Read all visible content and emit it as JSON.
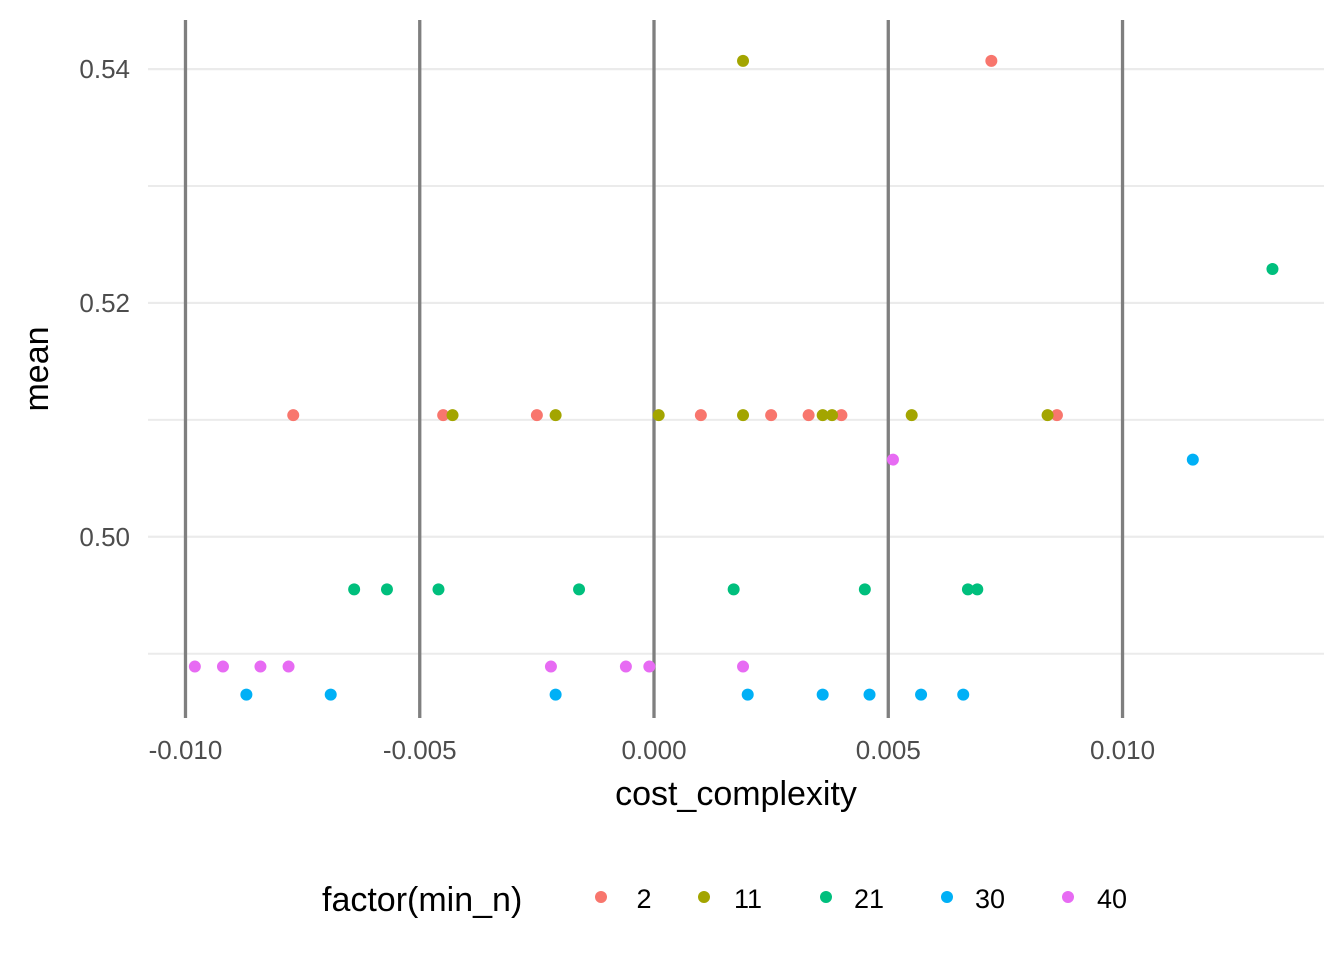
{
  "chart_data": {
    "type": "scatter",
    "title": "",
    "xlabel": "cost_complexity",
    "ylabel": "mean",
    "xlim": [
      -0.0108,
      0.0143
    ],
    "ylim": [
      0.4845,
      0.5442
    ],
    "x_ticks": [
      {
        "value": -0.01,
        "label": "-0.010"
      },
      {
        "value": -0.005,
        "label": "-0.005"
      },
      {
        "value": 0.0,
        "label": "0.000"
      },
      {
        "value": 0.005,
        "label": "0.005"
      },
      {
        "value": 0.01,
        "label": "0.010"
      }
    ],
    "y_ticks": [
      {
        "value": 0.54,
        "label": "0.54"
      },
      {
        "value": 0.52,
        "label": "0.52"
      },
      {
        "value": 0.5,
        "label": "0.50"
      }
    ],
    "y_minor_gridlines": [
      0.53,
      0.51,
      0.49
    ],
    "vertical_reference_lines": [
      -0.01,
      -0.005,
      0.0,
      0.005,
      0.01
    ],
    "grid": true,
    "legend": {
      "title": "factor(min_n)",
      "placement": "bottom"
    },
    "series": [
      {
        "name": "2",
        "color": "#F8766D",
        "points": [
          {
            "x": -0.0077,
            "y": 0.5104
          },
          {
            "x": -0.0045,
            "y": 0.5104
          },
          {
            "x": -0.0025,
            "y": 0.5104
          },
          {
            "x": 0.001,
            "y": 0.5104
          },
          {
            "x": 0.0025,
            "y": 0.5104
          },
          {
            "x": 0.0033,
            "y": 0.5104
          },
          {
            "x": 0.004,
            "y": 0.5104
          },
          {
            "x": 0.0086,
            "y": 0.5104
          },
          {
            "x": 0.0072,
            "y": 0.5407
          }
        ]
      },
      {
        "name": "11",
        "color": "#A3A500",
        "points": [
          {
            "x": 0.0019,
            "y": 0.5407
          },
          {
            "x": -0.0043,
            "y": 0.5104
          },
          {
            "x": -0.0021,
            "y": 0.5104
          },
          {
            "x": 0.0001,
            "y": 0.5104
          },
          {
            "x": 0.0019,
            "y": 0.5104
          },
          {
            "x": 0.0036,
            "y": 0.5104
          },
          {
            "x": 0.0038,
            "y": 0.5104
          },
          {
            "x": 0.0055,
            "y": 0.5104
          },
          {
            "x": 0.0084,
            "y": 0.5104
          }
        ]
      },
      {
        "name": "21",
        "color": "#00BF7D",
        "points": [
          {
            "x": 0.0132,
            "y": 0.5229
          },
          {
            "x": -0.0064,
            "y": 0.4955
          },
          {
            "x": -0.0057,
            "y": 0.4955
          },
          {
            "x": -0.0046,
            "y": 0.4955
          },
          {
            "x": -0.0016,
            "y": 0.4955
          },
          {
            "x": 0.0017,
            "y": 0.4955
          },
          {
            "x": 0.0045,
            "y": 0.4955
          },
          {
            "x": 0.0067,
            "y": 0.4955
          },
          {
            "x": 0.0069,
            "y": 0.4955
          }
        ]
      },
      {
        "name": "30",
        "color": "#00B0F6",
        "points": [
          {
            "x": 0.0115,
            "y": 0.5066
          },
          {
            "x": -0.0087,
            "y": 0.4865
          },
          {
            "x": -0.0069,
            "y": 0.4865
          },
          {
            "x": -0.0021,
            "y": 0.4865
          },
          {
            "x": 0.002,
            "y": 0.4865
          },
          {
            "x": 0.0036,
            "y": 0.4865
          },
          {
            "x": 0.0046,
            "y": 0.4865
          },
          {
            "x": 0.0057,
            "y": 0.4865
          },
          {
            "x": 0.0066,
            "y": 0.4865
          }
        ]
      },
      {
        "name": "40",
        "color": "#E76BF3",
        "points": [
          {
            "x": 0.0051,
            "y": 0.5066
          },
          {
            "x": -0.0098,
            "y": 0.4889
          },
          {
            "x": -0.0092,
            "y": 0.4889
          },
          {
            "x": -0.0084,
            "y": 0.4889
          },
          {
            "x": -0.0078,
            "y": 0.4889
          },
          {
            "x": -0.0022,
            "y": 0.4889
          },
          {
            "x": -0.0006,
            "y": 0.4889
          },
          {
            "x": -0.0001,
            "y": 0.4889
          },
          {
            "x": 0.0019,
            "y": 0.4889
          }
        ]
      }
    ]
  }
}
